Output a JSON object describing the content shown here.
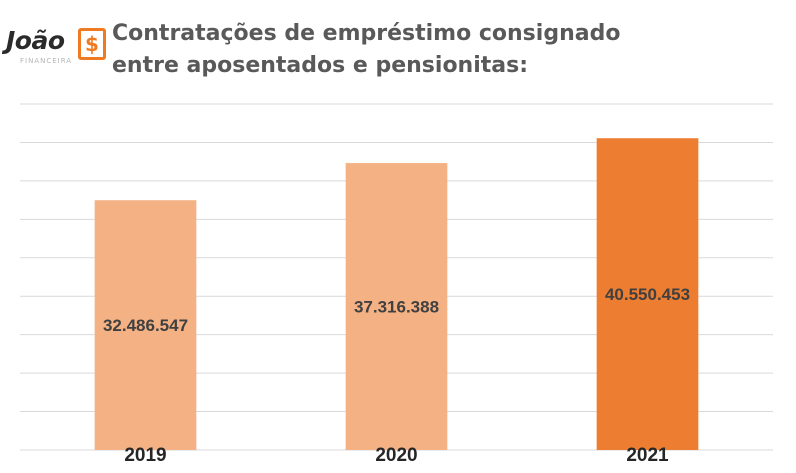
{
  "logo": {
    "word": "João",
    "symbol": "$",
    "subtitle": "FINANCEIRA"
  },
  "chart_data": {
    "type": "bar",
    "title": "Contratações de empréstimo consignado entre aposentados e pensionitas:",
    "categories": [
      "2019",
      "2020",
      "2021"
    ],
    "values": [
      32486547,
      37316388,
      40550453
    ],
    "value_labels": [
      "32.486.547",
      "37.316.388",
      "40.550.453"
    ],
    "colors": [
      "#f4b183",
      "#f4b183",
      "#ed7d31"
    ],
    "ylim": [
      0,
      45000000
    ],
    "grid": true,
    "legend": "none",
    "xlabel": "",
    "ylabel": ""
  }
}
